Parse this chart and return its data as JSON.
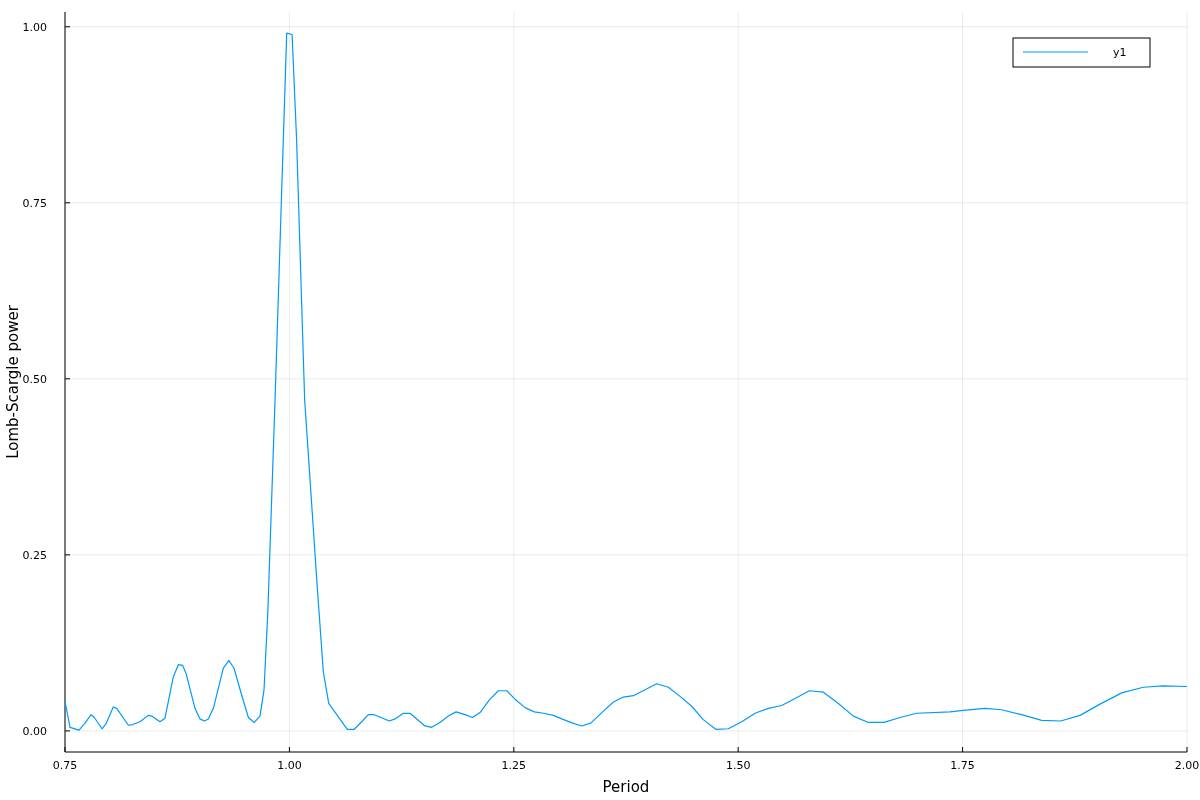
{
  "chart_data": {
    "type": "line",
    "xlabel": "Period",
    "ylabel": "Lomb-Scargle power",
    "xlim": [
      0.75,
      2.0
    ],
    "ylim": [
      -0.03,
      1.021
    ],
    "xticks": [
      {
        "value": 0.75,
        "label": "0.75"
      },
      {
        "value": 1,
        "label": "1.00"
      },
      {
        "value": 1.25,
        "label": "1.25"
      },
      {
        "value": 1.5,
        "label": "1.50"
      },
      {
        "value": 1.75,
        "label": "1.75"
      },
      {
        "value": 2,
        "label": "2.00"
      }
    ],
    "yticks": [
      {
        "value": 0,
        "label": "0.00"
      },
      {
        "value": 0.25,
        "label": "0.25"
      },
      {
        "value": 0.5,
        "label": "0.50"
      },
      {
        "value": 0.75,
        "label": "0.75"
      },
      {
        "value": 1,
        "label": "1.00"
      }
    ],
    "grid": true,
    "legend": "top right",
    "marker": "none",
    "line_style": "solid",
    "series": [
      {
        "name": "y1",
        "color": "#009af9",
        "x": [
          0.75,
          0.7556,
          0.7656,
          0.7723,
          0.779,
          0.7827,
          0.7912,
          0.7957,
          0.8038,
          0.8076,
          0.8206,
          0.8254,
          0.8336,
          0.8428,
          0.8466,
          0.8558,
          0.8614,
          0.8707,
          0.8763,
          0.8811,
          0.8848,
          0.8948,
          0.9004,
          0.9052,
          0.9097,
          0.9153,
          0.9264,
          0.9327,
          0.9383,
          0.9468,
          0.9543,
          0.9609,
          0.9672,
          0.9717,
          0.976,
          0.984,
          0.997,
          1.003,
          1.008,
          1.017,
          1.031,
          1.0378,
          1.0438,
          1.0645,
          1.072,
          1.0805,
          1.088,
          1.0946,
          1.1114,
          1.1177,
          1.1269,
          1.1344,
          1.1511,
          1.1585,
          1.1678,
          1.1771,
          1.1857,
          1.1957,
          1.2039,
          1.2124,
          1.2228,
          1.2328,
          1.2421,
          1.2514,
          1.2625,
          1.2729,
          1.283,
          1.2941,
          1.3034,
          1.3157,
          1.3257,
          1.3357,
          1.348,
          1.361,
          1.3721,
          1.3832,
          1.4092,
          1.4222,
          1.4352,
          1.4482,
          1.4611,
          1.4753,
          1.489,
          1.5039,
          1.5188,
          1.5336,
          1.5485,
          1.5634,
          1.5793,
          1.5949,
          1.6116,
          1.6283,
          1.645,
          1.6624,
          1.6803,
          1.6988,
          1.7359,
          1.7508,
          1.7749,
          1.7935,
          1.8158,
          1.8381,
          1.8592,
          1.8808,
          1.9031,
          1.9272,
          1.9514,
          1.9737,
          2.0
        ],
        "values": [
          0.042,
          0.005,
          0.001,
          0.011,
          0.023,
          0.019,
          0.003,
          0.01,
          0.034,
          0.032,
          0.008,
          0.009,
          0.013,
          0.022,
          0.021,
          0.013,
          0.018,
          0.077,
          0.094,
          0.093,
          0.082,
          0.032,
          0.017,
          0.014,
          0.017,
          0.032,
          0.089,
          0.1,
          0.089,
          0.051,
          0.019,
          0.012,
          0.021,
          0.058,
          0.17,
          0.47,
          0.991,
          0.989,
          0.84,
          0.47,
          0.205,
          0.084,
          0.039,
          0.002,
          0.002,
          0.013,
          0.023,
          0.023,
          0.014,
          0.017,
          0.025,
          0.025,
          0.007,
          0.005,
          0.012,
          0.021,
          0.027,
          0.023,
          0.019,
          0.026,
          0.044,
          0.057,
          0.057,
          0.045,
          0.033,
          0.027,
          0.025,
          0.022,
          0.017,
          0.011,
          0.007,
          0.011,
          0.026,
          0.041,
          0.048,
          0.05,
          0.067,
          0.062,
          0.049,
          0.035,
          0.016,
          0.002,
          0.003,
          0.013,
          0.025,
          0.032,
          0.036,
          0.046,
          0.057,
          0.055,
          0.039,
          0.021,
          0.012,
          0.012,
          0.019,
          0.025,
          0.027,
          0.029,
          0.032,
          0.03,
          0.023,
          0.015,
          0.014,
          0.022,
          0.038,
          0.054,
          0.062,
          0.064,
          0.063
        ]
      }
    ]
  }
}
